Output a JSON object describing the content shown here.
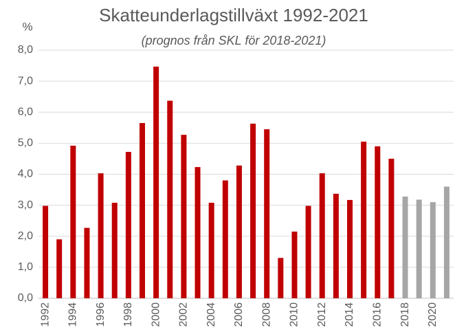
{
  "chart_data": {
    "type": "bar",
    "title": "Skatteunderlagstillväxt 1992-2021",
    "subtitle": "(prognos från SKL för 2018-2021)",
    "y_label": "%",
    "categories": [
      "1992",
      null,
      "1994",
      null,
      "1996",
      null,
      "1998",
      null,
      "2000",
      null,
      "2002",
      null,
      "2004",
      null,
      "2006",
      null,
      "2008",
      null,
      "2010",
      null,
      "2012",
      null,
      "2014",
      null,
      "2016",
      null,
      "2018",
      null,
      "2020",
      null
    ],
    "values": [
      2.98,
      1.9,
      4.92,
      2.27,
      4.03,
      3.08,
      4.72,
      5.65,
      7.47,
      6.37,
      5.27,
      4.23,
      3.08,
      3.8,
      4.28,
      5.63,
      5.45,
      1.3,
      2.15,
      2.98,
      4.03,
      3.37,
      3.17,
      5.05,
      4.9,
      4.5,
      3.28,
      3.18,
      3.1,
      3.6
    ],
    "colors": [
      "#c00000",
      "#c00000",
      "#c00000",
      "#c00000",
      "#c00000",
      "#c00000",
      "#c00000",
      "#c00000",
      "#c00000",
      "#c00000",
      "#c00000",
      "#c00000",
      "#c00000",
      "#c00000",
      "#c00000",
      "#c00000",
      "#c00000",
      "#c00000",
      "#c00000",
      "#c00000",
      "#c00000",
      "#c00000",
      "#c00000",
      "#c00000",
      "#c00000",
      "#c00000",
      "#a6a6a6",
      "#a6a6a6",
      "#a6a6a6",
      "#a6a6a6"
    ],
    "ylim": [
      0,
      8
    ],
    "yticks": [
      {
        "value": 0,
        "label": "0,0"
      },
      {
        "value": 1,
        "label": "1,0"
      },
      {
        "value": 2,
        "label": "2,0"
      },
      {
        "value": 3,
        "label": "3,0"
      },
      {
        "value": 4,
        "label": "4,0"
      },
      {
        "value": 5,
        "label": "5,0"
      },
      {
        "value": 6,
        "label": "6,0"
      },
      {
        "value": 7,
        "label": "7,0"
      },
      {
        "value": 8,
        "label": "8,0"
      }
    ],
    "grid": true
  }
}
